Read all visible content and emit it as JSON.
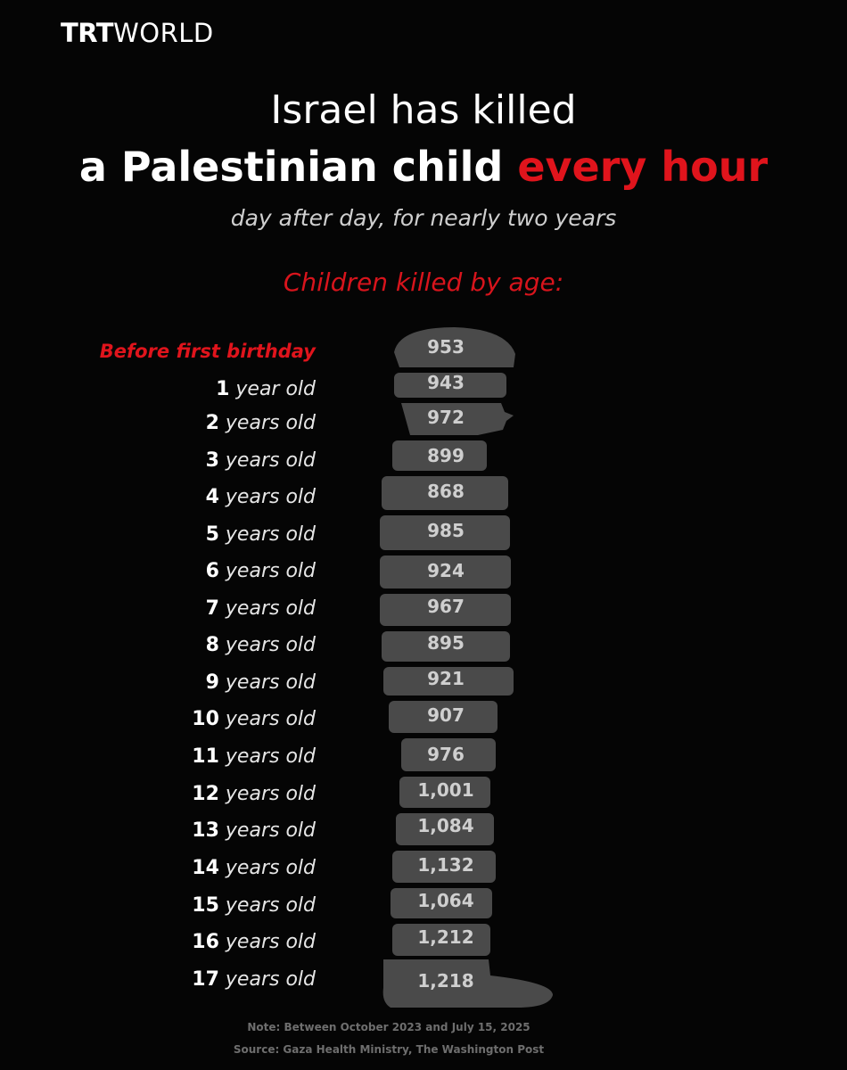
{
  "brand": {
    "logo_strong": "TRT",
    "logo_light": "WORLD"
  },
  "headline": {
    "line1": "Israel has killed",
    "line2_main": "a Palestinian child ",
    "line2_accent": "every hour",
    "subtitle": "day after day, for nearly two years"
  },
  "colors": {
    "accent": "#e0141c",
    "background": "#050505",
    "silhouette": "#4a4a4a"
  },
  "chart_data": {
    "type": "bar",
    "title": "Children killed by age:",
    "categories": [
      {
        "num": "",
        "unit": "Before first birthday"
      },
      {
        "num": "1",
        "unit": " year old"
      },
      {
        "num": "2",
        "unit": " years old"
      },
      {
        "num": "3",
        "unit": " years old"
      },
      {
        "num": "4",
        "unit": " years old"
      },
      {
        "num": "5",
        "unit": " years old"
      },
      {
        "num": "6",
        "unit": " years old"
      },
      {
        "num": "7",
        "unit": " years old"
      },
      {
        "num": "8",
        "unit": " years old"
      },
      {
        "num": "9",
        "unit": " years old"
      },
      {
        "num": "10",
        "unit": " years old"
      },
      {
        "num": "11",
        "unit": " years old"
      },
      {
        "num": "12",
        "unit": " years old"
      },
      {
        "num": "13",
        "unit": " years old"
      },
      {
        "num": "14",
        "unit": " years old"
      },
      {
        "num": "15",
        "unit": " years old"
      },
      {
        "num": "16",
        "unit": " years old"
      },
      {
        "num": "17",
        "unit": " years old"
      }
    ],
    "values": [
      953,
      943,
      972,
      899,
      868,
      985,
      924,
      967,
      895,
      921,
      907,
      976,
      1001,
      1084,
      1132,
      1064,
      1212,
      1218
    ],
    "value_labels": [
      "953",
      "943",
      "972",
      "899",
      "868",
      "985",
      "924",
      "967",
      "895",
      "921",
      "907",
      "976",
      "1,001",
      "1,084",
      "1,132",
      "1,064",
      "1,212",
      "1,218"
    ]
  },
  "footer": {
    "note": "Note: Between October 2023 and July 15, 2025",
    "source": "Source: Gaza Health Ministry, The Washington Post"
  }
}
